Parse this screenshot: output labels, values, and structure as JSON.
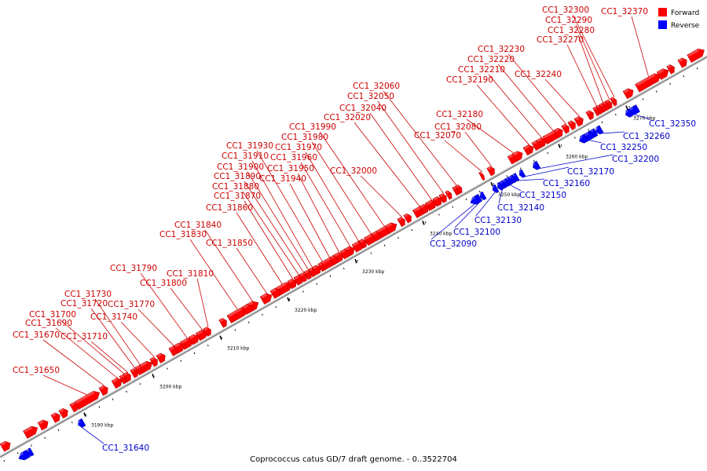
{
  "caption": "Coprococcus catus GD/7 draft genome. - 0..3522704",
  "legend": {
    "forward": {
      "label": "Forward",
      "color": "#ff0000"
    },
    "reverse": {
      "label": "Reverse",
      "color": "#0000ff"
    }
  },
  "colors": {
    "forward_label": "#cc0000",
    "reverse_label": "#0000cc",
    "backbone": "#888888"
  },
  "ticks": [
    "3190 kbp",
    "3200 kbp",
    "3210 kbp",
    "3220 kbp",
    "3230 kbp",
    "3240 kbp",
    "3250 kbp",
    "3260 kbp",
    "3270 kbp"
  ],
  "forward_genes": [
    "CC1_31650",
    "CC1_31670",
    "CC1_31690",
    "CC1_31700",
    "CC1_31710",
    "CC1_31720",
    "CC1_31730",
    "CC1_31740",
    "CC1_31770",
    "CC1_31790",
    "CC1_31800",
    "CC1_31810",
    "CC1_31830",
    "CC1_31840",
    "CC1_31850",
    "CC1_31860",
    "CC1_31870",
    "CC1_31880",
    "CC1_31890",
    "CC1_31900",
    "CC1_31910",
    "CC1_31930",
    "CC1_31940",
    "CC1_31950",
    "CC1_31960",
    "CC1_31970",
    "CC1_31980",
    "CC1_31990",
    "CC1_32000",
    "CC1_32020",
    "CC1_32040",
    "CC1_32050",
    "CC1_32060",
    "CC1_32070",
    "CC1_32080",
    "CC1_32180",
    "CC1_32190",
    "CC1_32210",
    "CC1_32220",
    "CC1_32230",
    "CC1_32240",
    "CC1_32270",
    "CC1_32280",
    "CC1_32290",
    "CC1_32300",
    "CC1_32370"
  ],
  "reverse_genes": [
    "CC1_31640",
    "CC1_32090",
    "CC1_32100",
    "CC1_32130",
    "CC1_32140",
    "CC1_32150",
    "CC1_32160",
    "CC1_32170",
    "CC1_32200",
    "CC1_32250",
    "CC1_32260",
    "CC1_32350"
  ]
}
